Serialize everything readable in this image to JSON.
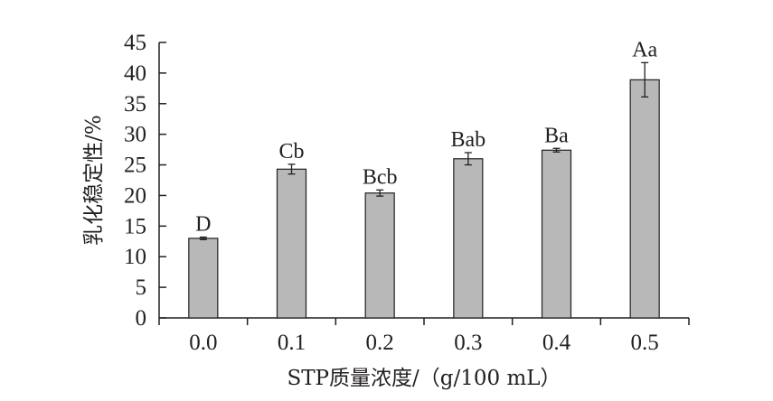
{
  "chart_data": {
    "type": "bar",
    "xlabel": "STP质量浓度/（g/100 mL）",
    "ylabel": "乳化稳定性/%",
    "ylim": [
      0,
      45
    ],
    "yticks": [
      0,
      5,
      10,
      15,
      20,
      25,
      30,
      35,
      40,
      45
    ],
    "categories": [
      "0.0",
      "0.1",
      "0.2",
      "0.3",
      "0.4",
      "0.5"
    ],
    "values": [
      13.0,
      24.3,
      20.4,
      26.0,
      27.4,
      38.9
    ],
    "errors": [
      0.2,
      0.8,
      0.5,
      1.0,
      0.3,
      2.8
    ],
    "labels": [
      "D",
      "Cb",
      "Bcb",
      "Bab",
      "Ba",
      "Aa"
    ],
    "grid": false,
    "colors": {
      "bar_fill": "#b8b8b8",
      "bar_stroke": "#231f20",
      "axis": "#231f20"
    }
  }
}
